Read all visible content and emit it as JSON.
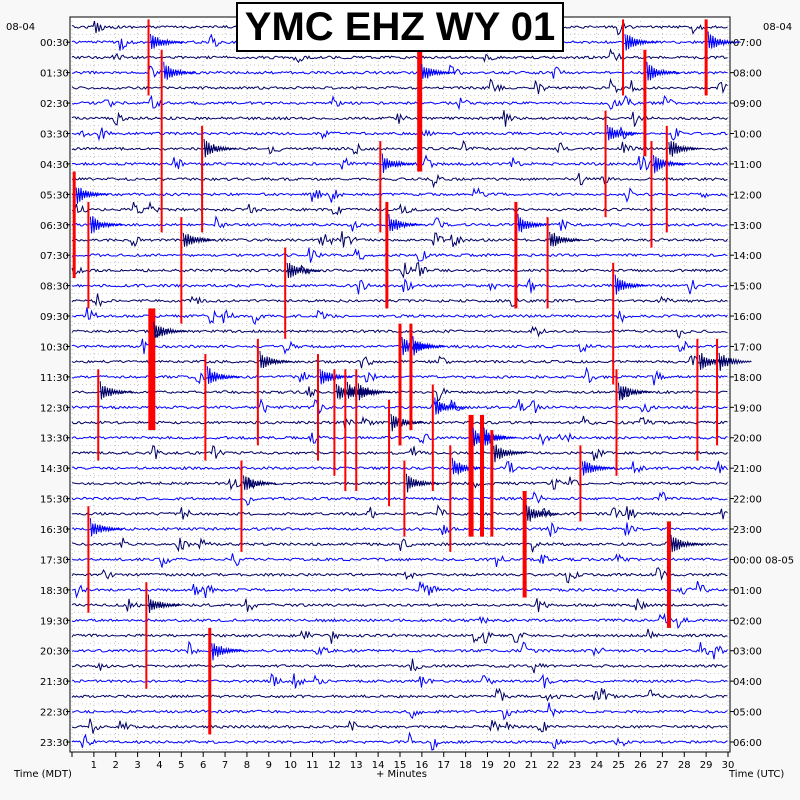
{
  "title": "YMC EHZ WY 01",
  "date_left": "08-04",
  "date_right": "08-04",
  "left_axis_label": "Time (MDT)",
  "bottom_axis_label": "+ Minutes",
  "right_axis_label": "Time (UTC)",
  "colors": {
    "trace_dark": "#000066",
    "trace_blue": "#0000ff",
    "event_marker": "#ff0000",
    "grid_dots": "#999999",
    "background": "#ffffff"
  },
  "chart_data": {
    "type": "line",
    "title": "YMC EHZ WY 01",
    "xlabel": "+ Minutes",
    "xlim": [
      0,
      30
    ],
    "x_ticks": [
      0,
      1,
      2,
      3,
      4,
      5,
      6,
      7,
      8,
      9,
      10,
      11,
      12,
      13,
      14,
      15,
      16,
      17,
      18,
      19,
      20,
      21,
      22,
      23,
      24,
      25,
      26,
      27,
      28,
      29,
      30
    ],
    "x_tick_labels": [
      "1",
      "2",
      "3",
      "4",
      "5",
      "6",
      "7",
      "8",
      "9",
      "10",
      "11",
      "12",
      "13",
      "14",
      "15",
      "16",
      "17",
      "18",
      "19",
      "20",
      "21",
      "22",
      "23",
      "24",
      "25",
      "26",
      "27",
      "28",
      "29",
      "30"
    ],
    "trace_count": 48,
    "trace_colors_alternate": [
      "#000066",
      "#0000ff"
    ],
    "left_ticks": [
      {
        "label": "00:30",
        "trace": 1
      },
      {
        "label": "01:30",
        "trace": 3
      },
      {
        "label": "02:30",
        "trace": 5
      },
      {
        "label": "03:30",
        "trace": 7
      },
      {
        "label": "04:30",
        "trace": 9
      },
      {
        "label": "05:30",
        "trace": 11
      },
      {
        "label": "06:30",
        "trace": 13
      },
      {
        "label": "07:30",
        "trace": 15
      },
      {
        "label": "08:30",
        "trace": 17
      },
      {
        "label": "09:30",
        "trace": 19
      },
      {
        "label": "10:30",
        "trace": 21
      },
      {
        "label": "11:30",
        "trace": 23
      },
      {
        "label": "12:30",
        "trace": 25
      },
      {
        "label": "13:30",
        "trace": 27
      },
      {
        "label": "14:30",
        "trace": 29
      },
      {
        "label": "15:30",
        "trace": 31
      },
      {
        "label": "16:30",
        "trace": 33
      },
      {
        "label": "17:30",
        "trace": 35
      },
      {
        "label": "18:30",
        "trace": 37
      },
      {
        "label": "19:30",
        "trace": 39
      },
      {
        "label": "20:30",
        "trace": 41
      },
      {
        "label": "21:30",
        "trace": 43
      },
      {
        "label": "22:30",
        "trace": 45
      },
      {
        "label": "23:30",
        "trace": 47
      }
    ],
    "right_ticks": [
      {
        "label": "07:00",
        "trace": 1
      },
      {
        "label": "08:00",
        "trace": 3
      },
      {
        "label": "09:00",
        "trace": 5
      },
      {
        "label": "10:00",
        "trace": 7
      },
      {
        "label": "11:00",
        "trace": 9
      },
      {
        "label": "12:00",
        "trace": 11
      },
      {
        "label": "13:00",
        "trace": 13
      },
      {
        "label": "14:00",
        "trace": 15
      },
      {
        "label": "15:00",
        "trace": 17
      },
      {
        "label": "16:00",
        "trace": 19
      },
      {
        "label": "17:00",
        "trace": 21
      },
      {
        "label": "18:00",
        "trace": 23
      },
      {
        "label": "19:00",
        "trace": 25
      },
      {
        "label": "20:00",
        "trace": 27
      },
      {
        "label": "21:00",
        "trace": 29
      },
      {
        "label": "22:00",
        "trace": 31
      },
      {
        "label": "23:00",
        "trace": 33
      },
      {
        "label": "00:00 08-05",
        "trace": 35
      },
      {
        "label": "01:00",
        "trace": 37
      },
      {
        "label": "02:00",
        "trace": 39
      },
      {
        "label": "03:00",
        "trace": 41
      },
      {
        "label": "04:00",
        "trace": 43
      },
      {
        "label": "05:00",
        "trace": 45
      },
      {
        "label": "06:00",
        "trace": 47
      }
    ],
    "red_events": [
      {
        "minute": 0.1,
        "trace_start": 10,
        "trace_end": 16,
        "width": 3
      },
      {
        "minute": 0.75,
        "trace_start": 12,
        "trace_end": 18,
        "width": 2
      },
      {
        "minute": 0.75,
        "trace_start": 32,
        "trace_end": 38,
        "width": 2
      },
      {
        "minute": 1.2,
        "trace_start": 23,
        "trace_end": 28,
        "width": 2
      },
      {
        "minute": 3.5,
        "trace_start": 0,
        "trace_end": 4,
        "width": 2
      },
      {
        "minute": 3.4,
        "trace_start": 37,
        "trace_end": 43,
        "width": 2
      },
      {
        "minute": 3.65,
        "trace_start": 19,
        "trace_end": 26,
        "width": 7
      },
      {
        "minute": 4.1,
        "trace_start": 2,
        "trace_end": 13,
        "width": 2
      },
      {
        "minute": 5.0,
        "trace_start": 13,
        "trace_end": 19,
        "width": 2
      },
      {
        "minute": 5.95,
        "trace_start": 7,
        "trace_end": 13,
        "width": 2
      },
      {
        "minute": 6.1,
        "trace_start": 22,
        "trace_end": 28,
        "width": 2
      },
      {
        "minute": 6.3,
        "trace_start": 40,
        "trace_end": 46,
        "width": 3
      },
      {
        "minute": 7.75,
        "trace_start": 29,
        "trace_end": 34,
        "width": 2
      },
      {
        "minute": 8.5,
        "trace_start": 21,
        "trace_end": 27,
        "width": 2
      },
      {
        "minute": 9.75,
        "trace_start": 15,
        "trace_end": 20,
        "width": 2
      },
      {
        "minute": 11.25,
        "trace_start": 22,
        "trace_end": 28,
        "width": 2
      },
      {
        "minute": 12.0,
        "trace_start": 23,
        "trace_end": 29,
        "width": 2
      },
      {
        "minute": 12.5,
        "trace_start": 23,
        "trace_end": 30,
        "width": 2
      },
      {
        "minute": 13.0,
        "trace_start": 23,
        "trace_end": 30,
        "width": 2
      },
      {
        "minute": 14.1,
        "trace_start": 8,
        "trace_end": 13,
        "width": 2
      },
      {
        "minute": 14.4,
        "trace_start": 12,
        "trace_end": 18,
        "width": 3
      },
      {
        "minute": 14.5,
        "trace_start": 25,
        "trace_end": 31,
        "width": 2
      },
      {
        "minute": 15.0,
        "trace_start": 20,
        "trace_end": 27,
        "width": 3
      },
      {
        "minute": 15.5,
        "trace_start": 20,
        "trace_end": 26,
        "width": 3
      },
      {
        "minute": 15.9,
        "trace_start": 2,
        "trace_end": 9,
        "width": 5
      },
      {
        "minute": 15.2,
        "trace_start": 29,
        "trace_end": 33,
        "width": 2
      },
      {
        "minute": 16.5,
        "trace_start": 24,
        "trace_end": 30,
        "width": 2
      },
      {
        "minute": 17.3,
        "trace_start": 28,
        "trace_end": 34,
        "width": 2
      },
      {
        "minute": 18.25,
        "trace_start": 26,
        "trace_end": 33,
        "width": 5
      },
      {
        "minute": 18.75,
        "trace_start": 26,
        "trace_end": 33,
        "width": 4
      },
      {
        "minute": 19.2,
        "trace_start": 27,
        "trace_end": 33,
        "width": 3
      },
      {
        "minute": 20.3,
        "trace_start": 12,
        "trace_end": 18,
        "width": 3
      },
      {
        "minute": 20.7,
        "trace_start": 31,
        "trace_end": 37,
        "width": 4
      },
      {
        "minute": 21.75,
        "trace_start": 13,
        "trace_end": 18,
        "width": 2
      },
      {
        "minute": 23.25,
        "trace_start": 28,
        "trace_end": 32,
        "width": 2
      },
      {
        "minute": 24.4,
        "trace_start": 6,
        "trace_end": 12,
        "width": 2
      },
      {
        "minute": 24.75,
        "trace_start": 16,
        "trace_end": 23,
        "width": 2
      },
      {
        "minute": 24.9,
        "trace_start": 23,
        "trace_end": 29,
        "width": 2
      },
      {
        "minute": 25.2,
        "trace_start": 0,
        "trace_end": 4,
        "width": 2
      },
      {
        "minute": 26.2,
        "trace_start": 2,
        "trace_end": 8,
        "width": 3
      },
      {
        "minute": 26.5,
        "trace_start": 8,
        "trace_end": 14,
        "width": 2
      },
      {
        "minute": 27.2,
        "trace_start": 7,
        "trace_end": 13,
        "width": 2
      },
      {
        "minute": 27.3,
        "trace_start": 33,
        "trace_end": 39,
        "width": 4
      },
      {
        "minute": 28.6,
        "trace_start": 21,
        "trace_end": 28,
        "width": 2
      },
      {
        "minute": 29.0,
        "trace_start": 0,
        "trace_end": 4,
        "width": 3
      },
      {
        "minute": 29.5,
        "trace_start": 21,
        "trace_end": 27,
        "width": 2
      }
    ],
    "grid": true
  }
}
